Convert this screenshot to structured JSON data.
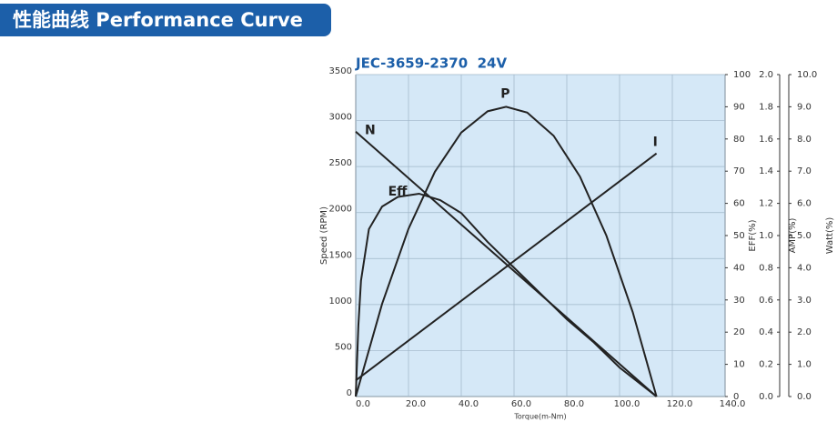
{
  "banner": "性能曲线 Performance Curve",
  "chart_data": {
    "type": "line",
    "title": "JEC-3659-2370  24V",
    "x_label": "Torque(m-Nm)",
    "y_label": "Speed (RPM)",
    "y2_label": "EFF(%)",
    "y3_label": "AMP(%)",
    "y4_label": "Watt(%)",
    "xlim": [
      0,
      140
    ],
    "xticks": [
      {
        "value": 0,
        "label": "0.0"
      },
      {
        "value": 20,
        "label": "20.0"
      },
      {
        "value": 40,
        "label": "40.0"
      },
      {
        "value": 60,
        "label": "60.0"
      },
      {
        "value": 80,
        "label": "80.0"
      },
      {
        "value": 100,
        "label": "100.0"
      },
      {
        "value": 120,
        "label": "120.0"
      },
      {
        "value": 140,
        "label": "140.0"
      }
    ],
    "ylim": [
      0,
      3500
    ],
    "yticks": [
      0,
      500,
      1000,
      1500,
      2000,
      2500,
      3000,
      3500
    ],
    "y2lim": [
      0,
      100
    ],
    "y2ticks": [
      0,
      10,
      20,
      30,
      40,
      50,
      60,
      70,
      80,
      90,
      100
    ],
    "y3lim": [
      0,
      2
    ],
    "y3ticks": [
      {
        "value": 0,
        "label": "0.0"
      },
      0.2,
      0.4,
      0.6,
      0.8,
      {
        "value": 1,
        "label": "1.0"
      },
      1.2,
      1.4,
      1.6,
      1.8,
      {
        "value": 2,
        "label": "2.0"
      }
    ],
    "y4lim": [
      0,
      10
    ],
    "y4ticks": [
      {
        "value": 0,
        "label": "0.0"
      },
      {
        "value": 1,
        "label": "1.0"
      },
      {
        "value": 2,
        "label": "2.0"
      },
      {
        "value": 3,
        "label": "3.0"
      },
      {
        "value": 4,
        "label": "4.0"
      },
      {
        "value": 5,
        "label": "5.0"
      },
      {
        "value": 6,
        "label": "6.0"
      },
      {
        "value": 7,
        "label": "7.0"
      },
      {
        "value": 8,
        "label": "8.0"
      },
      {
        "value": 9,
        "label": "9.0"
      },
      {
        "value": 10,
        "label": "10.0"
      }
    ],
    "grid": true,
    "series": [
      {
        "name": "N",
        "color": "#222222",
        "axis": "y",
        "x": [
          0,
          114
        ],
        "values": [
          2880,
          0
        ]
      },
      {
        "name": "P",
        "color": "#222222",
        "axis": "y4",
        "x": [
          0,
          10,
          20,
          30,
          40,
          50,
          57,
          65,
          75,
          85,
          95,
          105,
          114
        ],
        "values": [
          0,
          2.88,
          5.21,
          6.98,
          8.2,
          8.86,
          9.0,
          8.82,
          8.1,
          6.83,
          5.0,
          2.62,
          0
        ]
      },
      {
        "name": "Eff",
        "color": "#222222",
        "axis": "y2",
        "x": [
          0,
          1,
          2,
          5,
          10,
          16,
          24,
          32,
          40,
          50,
          60,
          70,
          80,
          90,
          100,
          114
        ],
        "values": [
          0,
          22,
          36,
          52,
          59,
          62,
          63,
          61,
          57,
          48,
          40,
          32,
          24,
          17,
          9,
          0
        ]
      },
      {
        "name": "I",
        "color": "#222222",
        "axis": "y3",
        "x": [
          0,
          114
        ],
        "values": [
          0.1,
          1.51
        ]
      }
    ]
  }
}
